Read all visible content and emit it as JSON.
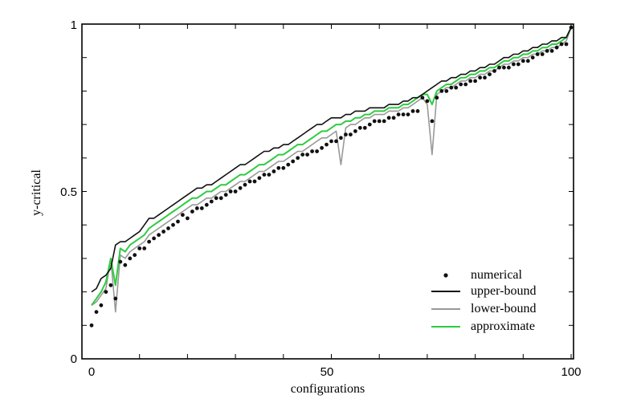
{
  "chart_data": {
    "type": "line",
    "title": "",
    "xlabel": "configurations",
    "ylabel": "y-critical",
    "xlim": [
      -2,
      101
    ],
    "ylim": [
      0,
      1
    ],
    "xticks": [
      0,
      50,
      100
    ],
    "yticks": [
      0,
      0.5,
      1
    ],
    "xtick_labels": [
      "0",
      "50",
      "100"
    ],
    "ytick_labels": [
      "0",
      "0.5",
      "1"
    ],
    "grid": false,
    "legend_position": "bottom-right",
    "x": [
      0,
      1,
      2,
      3,
      4,
      5,
      6,
      7,
      8,
      9,
      10,
      11,
      12,
      13,
      14,
      15,
      16,
      17,
      18,
      19,
      20,
      21,
      22,
      23,
      24,
      25,
      26,
      27,
      28,
      29,
      30,
      31,
      32,
      33,
      34,
      35,
      36,
      37,
      38,
      39,
      40,
      41,
      42,
      43,
      44,
      45,
      46,
      47,
      48,
      49,
      50,
      51,
      52,
      53,
      54,
      55,
      56,
      57,
      58,
      59,
      60,
      61,
      62,
      63,
      64,
      65,
      66,
      67,
      68,
      69,
      70,
      71,
      72,
      73,
      74,
      75,
      76,
      77,
      78,
      79,
      80,
      81,
      82,
      83,
      84,
      85,
      86,
      87,
      88,
      89,
      90,
      91,
      92,
      93,
      94,
      95,
      96,
      97,
      98,
      99,
      100
    ],
    "series": [
      {
        "name": "numerical",
        "style": "dots",
        "color": "#111111",
        "values": [
          0.1,
          0.14,
          0.16,
          0.2,
          0.22,
          0.18,
          0.29,
          0.28,
          0.3,
          0.31,
          0.33,
          0.33,
          0.35,
          0.36,
          0.37,
          0.38,
          0.39,
          0.4,
          0.41,
          0.43,
          0.42,
          0.44,
          0.45,
          0.45,
          0.46,
          0.47,
          0.48,
          0.48,
          0.49,
          0.5,
          0.5,
          0.51,
          0.52,
          0.53,
          0.53,
          0.54,
          0.55,
          0.55,
          0.56,
          0.57,
          0.57,
          0.58,
          0.59,
          0.6,
          0.61,
          0.61,
          0.62,
          0.62,
          0.63,
          0.64,
          0.65,
          0.65,
          0.66,
          0.67,
          0.67,
          0.68,
          0.69,
          0.69,
          0.7,
          0.71,
          0.71,
          0.71,
          0.72,
          0.72,
          0.73,
          0.73,
          0.73,
          0.74,
          0.74,
          0.78,
          0.77,
          0.71,
          0.78,
          0.8,
          0.8,
          0.81,
          0.81,
          0.82,
          0.82,
          0.83,
          0.83,
          0.84,
          0.84,
          0.85,
          0.86,
          0.87,
          0.87,
          0.87,
          0.88,
          0.88,
          0.89,
          0.89,
          0.9,
          0.91,
          0.91,
          0.92,
          0.92,
          0.93,
          0.94,
          0.94,
          0.99
        ]
      },
      {
        "name": "upper-bound",
        "style": "line",
        "color": "#111111",
        "values": [
          0.2,
          0.21,
          0.24,
          0.25,
          0.27,
          0.34,
          0.35,
          0.35,
          0.36,
          0.37,
          0.38,
          0.4,
          0.42,
          0.42,
          0.43,
          0.44,
          0.45,
          0.46,
          0.47,
          0.48,
          0.49,
          0.5,
          0.51,
          0.51,
          0.52,
          0.52,
          0.53,
          0.54,
          0.55,
          0.56,
          0.57,
          0.58,
          0.58,
          0.59,
          0.6,
          0.61,
          0.62,
          0.62,
          0.63,
          0.63,
          0.64,
          0.64,
          0.65,
          0.66,
          0.67,
          0.68,
          0.69,
          0.7,
          0.7,
          0.71,
          0.72,
          0.72,
          0.72,
          0.73,
          0.73,
          0.74,
          0.74,
          0.74,
          0.75,
          0.75,
          0.75,
          0.75,
          0.76,
          0.76,
          0.76,
          0.77,
          0.77,
          0.78,
          0.78,
          0.79,
          0.8,
          0.81,
          0.82,
          0.83,
          0.83,
          0.84,
          0.84,
          0.85,
          0.85,
          0.86,
          0.86,
          0.87,
          0.87,
          0.88,
          0.88,
          0.89,
          0.9,
          0.9,
          0.91,
          0.91,
          0.92,
          0.92,
          0.93,
          0.93,
          0.94,
          0.94,
          0.95,
          0.95,
          0.96,
          0.96,
          0.99
        ]
      },
      {
        "name": "lower-bound",
        "style": "line",
        "color": "#999999",
        "values": [
          0.16,
          0.17,
          0.19,
          0.21,
          0.3,
          0.14,
          0.31,
          0.3,
          0.32,
          0.33,
          0.34,
          0.35,
          0.37,
          0.38,
          0.39,
          0.4,
          0.41,
          0.42,
          0.43,
          0.44,
          0.45,
          0.46,
          0.46,
          0.47,
          0.48,
          0.48,
          0.49,
          0.5,
          0.5,
          0.51,
          0.52,
          0.53,
          0.53,
          0.54,
          0.55,
          0.56,
          0.56,
          0.57,
          0.58,
          0.59,
          0.59,
          0.6,
          0.61,
          0.62,
          0.62,
          0.63,
          0.64,
          0.65,
          0.66,
          0.66,
          0.67,
          0.68,
          0.58,
          0.69,
          0.7,
          0.7,
          0.71,
          0.72,
          0.72,
          0.73,
          0.73,
          0.73,
          0.74,
          0.74,
          0.74,
          0.75,
          0.75,
          0.76,
          0.77,
          0.78,
          0.76,
          0.61,
          0.79,
          0.8,
          0.81,
          0.81,
          0.82,
          0.83,
          0.83,
          0.84,
          0.84,
          0.85,
          0.85,
          0.86,
          0.86,
          0.87,
          0.88,
          0.88,
          0.89,
          0.89,
          0.9,
          0.9,
          0.91,
          0.91,
          0.92,
          0.92,
          0.93,
          0.93,
          0.94,
          0.95,
          0.99
        ]
      },
      {
        "name": "approximate",
        "style": "line",
        "color": "#2ecc40",
        "values": [
          0.16,
          0.18,
          0.2,
          0.23,
          0.3,
          0.22,
          0.33,
          0.32,
          0.34,
          0.35,
          0.36,
          0.37,
          0.39,
          0.4,
          0.41,
          0.42,
          0.43,
          0.44,
          0.45,
          0.46,
          0.47,
          0.48,
          0.48,
          0.49,
          0.5,
          0.5,
          0.51,
          0.52,
          0.52,
          0.53,
          0.54,
          0.55,
          0.55,
          0.56,
          0.57,
          0.58,
          0.58,
          0.59,
          0.6,
          0.61,
          0.61,
          0.62,
          0.63,
          0.64,
          0.64,
          0.65,
          0.66,
          0.67,
          0.68,
          0.68,
          0.69,
          0.7,
          0.7,
          0.71,
          0.71,
          0.72,
          0.72,
          0.73,
          0.73,
          0.74,
          0.74,
          0.74,
          0.75,
          0.75,
          0.75,
          0.76,
          0.76,
          0.77,
          0.78,
          0.79,
          0.79,
          0.76,
          0.8,
          0.81,
          0.82,
          0.82,
          0.83,
          0.84,
          0.84,
          0.85,
          0.85,
          0.86,
          0.86,
          0.87,
          0.87,
          0.88,
          0.89,
          0.89,
          0.9,
          0.9,
          0.91,
          0.91,
          0.92,
          0.92,
          0.93,
          0.93,
          0.94,
          0.94,
          0.95,
          0.96,
          0.99
        ]
      }
    ]
  }
}
